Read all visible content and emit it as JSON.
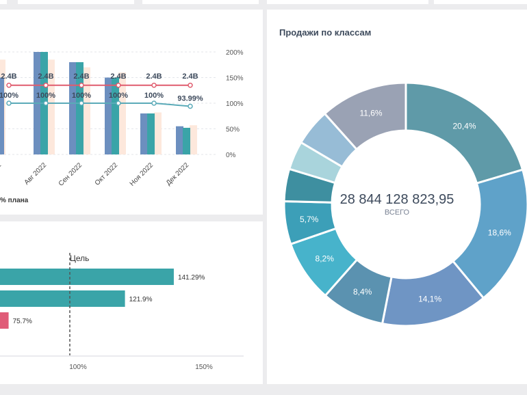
{
  "colors": {
    "bar_blue": "#6c8fbf",
    "bar_teal": "#3aa4a8",
    "bar_peach": "#fde8dc",
    "plan_line": "#e05c6e",
    "pct_line": "#5aaab8",
    "bar_low": "#e05c78",
    "goal_line": "#555555"
  },
  "monthly": {
    "chart_data": {
      "type": "bar",
      "categories": [
        "Авг 2022",
        "Сен 2022",
        "Окт 2022",
        "Ноя 2022",
        "Дек 2022"
      ],
      "series": [
        {
          "values": [
            200,
            180,
            150,
            80,
            55
          ]
        },
        {
          "values": [
            200,
            180,
            150,
            80,
            52
          ]
        },
        {
          "values": [
            185,
            170,
            160,
            82,
            57
          ]
        }
      ],
      "line_plan": {
        "labels": [
          "2.4B",
          "2.4B",
          "2.4B",
          "2.4B",
          "2.4B",
          "2.4B"
        ],
        "values": [
          135,
          135,
          135,
          135,
          135,
          135
        ]
      },
      "line_pct": {
        "labels": [
          "100%",
          "100%",
          "100%",
          "100%",
          "100%",
          "93.99%"
        ],
        "values": [
          100,
          100,
          100,
          100,
          100,
          94
        ]
      },
      "yticks": [
        "200%",
        "150%",
        "100%",
        "50%",
        "0%"
      ],
      "ylim": [
        0,
        200
      ],
      "edge_label_left": "22",
      "legend_partial": "% плана"
    }
  },
  "goal": {
    "chart_data": {
      "type": "bar",
      "orientation": "horizontal",
      "values": [
        141.29,
        121.9,
        75.7
      ],
      "labels": [
        "141.29%",
        "121.9%",
        "75.7%"
      ],
      "goal_label": "Цель",
      "goal_value": 100,
      "xticks": [
        "100%",
        "150%"
      ],
      "xlim": [
        0,
        150
      ]
    }
  },
  "classes": {
    "title": "Продажи по классам",
    "center_value": "28 844 128 823,95",
    "center_label": "ВСЕГО",
    "chart_data": {
      "type": "pie",
      "values": [
        20.4,
        18.6,
        14.1,
        8.4,
        8.2,
        5.7,
        4.3,
        3.8,
        4.9,
        11.6
      ],
      "labels": [
        "20,4%",
        "18,6%",
        "14,1%",
        "8,4%",
        "8,2%",
        "5,7%",
        "",
        "",
        "",
        "11,6%"
      ],
      "colors": [
        "#5f9aa8",
        "#5fa2c9",
        "#6f95c4",
        "#5b92b0",
        "#47b3cb",
        "#3c9fb8",
        "#3e8fa0",
        "#a9d4dc",
        "#97bcd6",
        "#9aa2b4"
      ]
    }
  }
}
